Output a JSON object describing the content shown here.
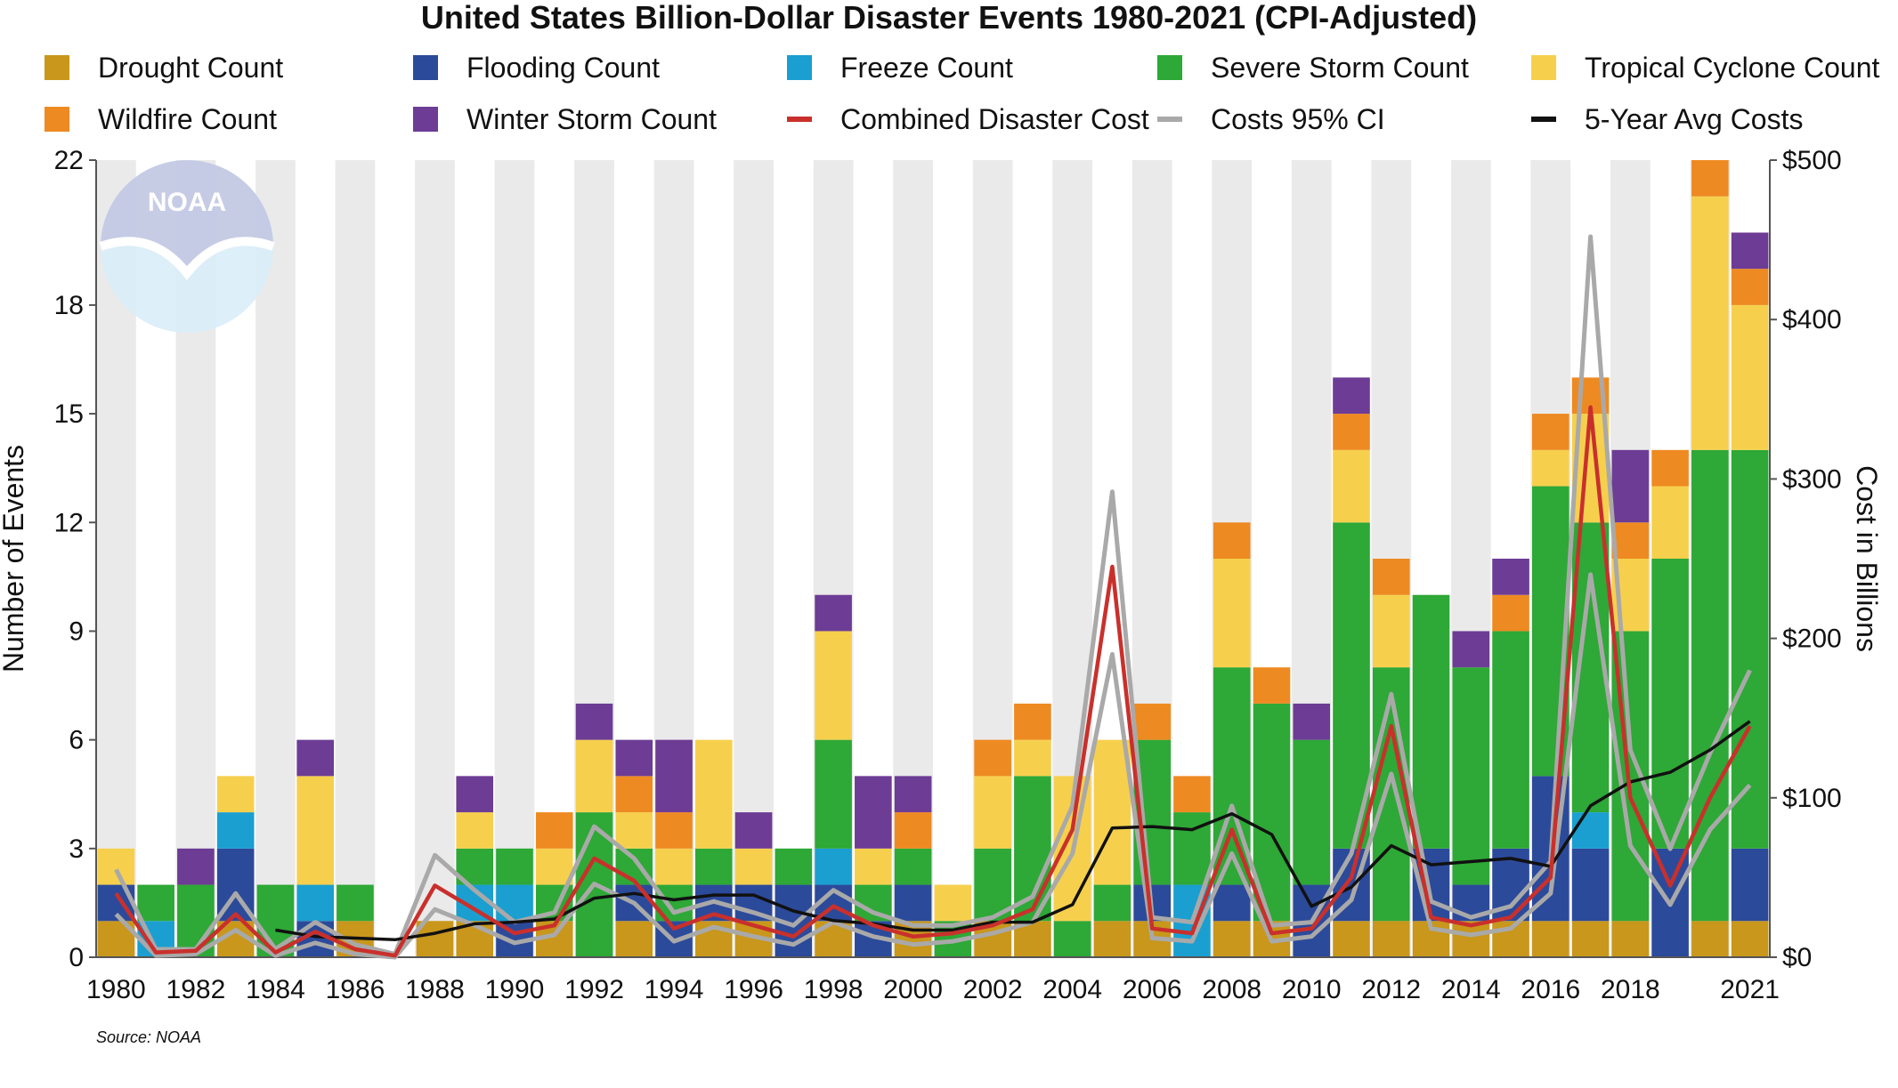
{
  "chart_data": {
    "type": "bar",
    "stacked": true,
    "title": "United States Billion-Dollar Disaster Events 1980-2021 (CPI-Adjusted)",
    "source": "Source: NOAA",
    "logo_text": "NOAA",
    "ylabel": "Number of Events",
    "y2label": "Cost in Billions",
    "ylim": [
      0,
      22
    ],
    "y2lim": [
      0,
      500
    ],
    "yticks": [
      "0",
      "3",
      "6",
      "9",
      "12",
      "15",
      "18",
      "22"
    ],
    "yticks_values": [
      0,
      3,
      6,
      9,
      12,
      15,
      18,
      22
    ],
    "y2ticks": [
      "$0",
      "$100",
      "$200",
      "$300",
      "$400",
      "$500"
    ],
    "y2ticks_values": [
      0,
      100,
      200,
      300,
      400,
      500
    ],
    "xtick_labels": [
      "1980",
      "1982",
      "1984",
      "1986",
      "1988",
      "1990",
      "1992",
      "1994",
      "1996",
      "1998",
      "2000",
      "2002",
      "2004",
      "2006",
      "2008",
      "2010",
      "2012",
      "2014",
      "2016",
      "2018",
      "2021"
    ],
    "xtick_years": [
      1980,
      1982,
      1984,
      1986,
      1988,
      1990,
      1992,
      1994,
      1996,
      1998,
      2000,
      2002,
      2004,
      2006,
      2008,
      2010,
      2012,
      2014,
      2016,
      2018,
      2021
    ],
    "categories": [
      1980,
      1981,
      1982,
      1983,
      1984,
      1985,
      1986,
      1987,
      1988,
      1989,
      1990,
      1991,
      1992,
      1993,
      1994,
      1995,
      1996,
      1997,
      1998,
      1999,
      2000,
      2001,
      2002,
      2003,
      2004,
      2005,
      2006,
      2007,
      2008,
      2009,
      2010,
      2011,
      2012,
      2013,
      2014,
      2015,
      2016,
      2017,
      2018,
      2019,
      2020,
      2021
    ],
    "series": [
      {
        "name": "Drought Count",
        "color": "#c8971b",
        "values": [
          1,
          0,
          0,
          1,
          0,
          0,
          1,
          0,
          1,
          1,
          0,
          1,
          0,
          1,
          0,
          1,
          1,
          0,
          1,
          0,
          1,
          0,
          1,
          1,
          0,
          1,
          1,
          0,
          1,
          1,
          0,
          1,
          1,
          1,
          1,
          1,
          1,
          1,
          1,
          0,
          1,
          1
        ]
      },
      {
        "name": "Flooding Count",
        "color": "#2c4a9a",
        "values": [
          1,
          0,
          0,
          2,
          0,
          1,
          0,
          0,
          0,
          0,
          1,
          0,
          0,
          1,
          1,
          1,
          1,
          2,
          1,
          1,
          1,
          0,
          0,
          0,
          0,
          0,
          1,
          0,
          1,
          0,
          2,
          2,
          0,
          2,
          1,
          2,
          4,
          2,
          0,
          3,
          0,
          2
        ]
      },
      {
        "name": "Freeze Count",
        "color": "#1a9fd0",
        "values": [
          0,
          1,
          0,
          1,
          0,
          1,
          0,
          0,
          0,
          1,
          1,
          0,
          0,
          0,
          0,
          0,
          0,
          0,
          1,
          0,
          0,
          0,
          0,
          0,
          0,
          0,
          0,
          2,
          0,
          0,
          0,
          0,
          0,
          0,
          0,
          0,
          0,
          1,
          0,
          0,
          0,
          0
        ]
      },
      {
        "name": "Severe Storm Count",
        "color": "#2ea836",
        "values": [
          0,
          1,
          2,
          0,
          2,
          0,
          1,
          0,
          0,
          1,
          1,
          1,
          4,
          1,
          1,
          1,
          0,
          1,
          3,
          1,
          1,
          1,
          2,
          4,
          1,
          1,
          4,
          2,
          6,
          6,
          4,
          9,
          7,
          7,
          6,
          6,
          8,
          8,
          8,
          8,
          13,
          11
        ]
      },
      {
        "name": "Tropical Cyclone Count",
        "color": "#f6d04d",
        "values": [
          1,
          0,
          0,
          1,
          0,
          3,
          0,
          0,
          0,
          1,
          0,
          1,
          2,
          1,
          1,
          3,
          1,
          0,
          3,
          1,
          0,
          1,
          2,
          1,
          4,
          4,
          0,
          0,
          3,
          0,
          0,
          2,
          2,
          0,
          0,
          0,
          1,
          3,
          2,
          2,
          7,
          4
        ]
      },
      {
        "name": "Wildfire Count",
        "color": "#ee8a22",
        "values": [
          0,
          0,
          0,
          0,
          0,
          0,
          0,
          0,
          0,
          0,
          0,
          1,
          0,
          1,
          1,
          0,
          0,
          0,
          0,
          0,
          1,
          0,
          1,
          1,
          0,
          0,
          1,
          1,
          1,
          1,
          0,
          1,
          1,
          0,
          0,
          1,
          1,
          1,
          1,
          1,
          1,
          1
        ]
      },
      {
        "name": "Winter Storm Count",
        "color": "#6d3c95",
        "values": [
          0,
          0,
          1,
          0,
          0,
          1,
          0,
          0,
          0,
          1,
          0,
          0,
          1,
          1,
          2,
          0,
          1,
          0,
          1,
          2,
          1,
          0,
          0,
          0,
          0,
          0,
          0,
          0,
          0,
          0,
          1,
          1,
          0,
          0,
          1,
          1,
          0,
          0,
          2,
          0,
          0,
          1
        ]
      }
    ],
    "line_series": [
      {
        "name": "Combined Disaster Cost",
        "color": "#c9302c",
        "values": [
          40,
          3,
          4,
          27,
          3,
          16,
          5,
          1,
          45,
          30,
          15,
          20,
          62,
          48,
          18,
          27,
          20,
          13,
          32,
          20,
          13,
          15,
          20,
          30,
          80,
          245,
          18,
          15,
          80,
          15,
          18,
          50,
          145,
          25,
          20,
          25,
          50,
          345,
          100,
          45,
          100,
          145
        ]
      },
      {
        "name": "Costs 95% CI",
        "color": "#a9a9a9",
        "values": [
          55,
          5,
          5,
          40,
          5,
          22,
          8,
          2,
          64,
          42,
          22,
          28,
          82,
          62,
          28,
          35,
          28,
          20,
          42,
          28,
          20,
          20,
          25,
          38,
          95,
          292,
          25,
          22,
          95,
          20,
          22,
          65,
          165,
          35,
          25,
          32,
          60,
          452,
          130,
          68,
          128,
          180
        ],
        "values_lower": [
          27,
          1,
          2,
          17,
          1,
          9,
          2,
          0,
          30,
          20,
          9,
          14,
          46,
          34,
          10,
          19,
          13,
          8,
          22,
          13,
          8,
          10,
          15,
          22,
          65,
          190,
          12,
          10,
          65,
          10,
          13,
          36,
          115,
          18,
          14,
          18,
          40,
          240,
          70,
          33,
          80,
          108
        ]
      },
      {
        "name": "5-Year Avg Costs",
        "color": "#111111",
        "values": [
          null,
          null,
          null,
          null,
          17,
          13,
          12,
          11,
          15,
          21,
          22,
          24,
          37,
          40,
          36,
          39,
          39,
          29,
          23,
          21,
          17,
          17,
          22,
          22,
          33,
          81,
          82,
          80,
          90,
          77,
          32,
          44,
          70,
          58,
          60,
          62,
          57,
          95,
          110,
          116,
          130,
          148
        ]
      }
    ],
    "legend": {
      "placement": "top",
      "items": [
        {
          "label": "Drought Count",
          "kind": "square",
          "color": "#c8971b"
        },
        {
          "label": "Flooding Count",
          "kind": "square",
          "color": "#2c4a9a"
        },
        {
          "label": "Freeze Count",
          "kind": "square",
          "color": "#1a9fd0"
        },
        {
          "label": "Severe Storm Count",
          "kind": "square",
          "color": "#2ea836"
        },
        {
          "label": "Tropical Cyclone Count",
          "kind": "square",
          "color": "#f6d04d"
        },
        {
          "label": "Wildfire Count",
          "kind": "square",
          "color": "#ee8a22"
        },
        {
          "label": "Winter Storm Count",
          "kind": "square",
          "color": "#6d3c95"
        },
        {
          "label": "Combined Disaster Cost",
          "kind": "line",
          "color": "#c9302c"
        },
        {
          "label": "Costs 95% CI",
          "kind": "line",
          "color": "#a9a9a9"
        },
        {
          "label": "5-Year Avg Costs",
          "kind": "line",
          "color": "#111111"
        }
      ]
    },
    "background_stripe_color": "#eaeaea"
  }
}
